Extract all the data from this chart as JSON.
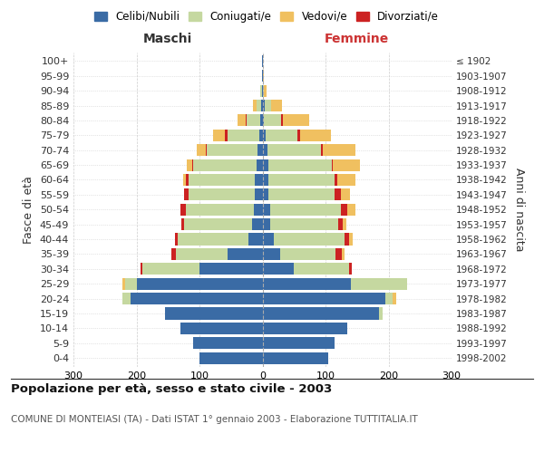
{
  "age_groups": [
    "0-4",
    "5-9",
    "10-14",
    "15-19",
    "20-24",
    "25-29",
    "30-34",
    "35-39",
    "40-44",
    "45-49",
    "50-54",
    "55-59",
    "60-64",
    "65-69",
    "70-74",
    "75-79",
    "80-84",
    "85-89",
    "90-94",
    "95-99",
    "100+"
  ],
  "birth_years": [
    "1998-2002",
    "1993-1997",
    "1988-1992",
    "1983-1987",
    "1978-1982",
    "1973-1977",
    "1968-1972",
    "1963-1967",
    "1958-1962",
    "1953-1957",
    "1948-1952",
    "1943-1947",
    "1938-1942",
    "1933-1937",
    "1928-1932",
    "1923-1927",
    "1918-1922",
    "1913-1917",
    "1908-1912",
    "1903-1907",
    "≤ 1902"
  ],
  "maschi_celibi": [
    100,
    110,
    130,
    155,
    210,
    200,
    100,
    55,
    22,
    16,
    14,
    12,
    12,
    10,
    8,
    5,
    3,
    2,
    1,
    1,
    1
  ],
  "maschi_coniugati": [
    0,
    0,
    0,
    0,
    12,
    18,
    90,
    82,
    112,
    108,
    108,
    105,
    105,
    100,
    80,
    50,
    22,
    8,
    2,
    0,
    0
  ],
  "maschi_vedovi": [
    0,
    0,
    0,
    0,
    0,
    4,
    0,
    0,
    0,
    0,
    0,
    0,
    4,
    8,
    14,
    18,
    12,
    5,
    0,
    0,
    0
  ],
  "maschi_divorziati": [
    0,
    0,
    0,
    0,
    0,
    0,
    4,
    8,
    5,
    5,
    8,
    8,
    5,
    2,
    2,
    5,
    2,
    0,
    0,
    0,
    0
  ],
  "femmine_nubili": [
    105,
    115,
    135,
    185,
    195,
    140,
    50,
    28,
    18,
    12,
    12,
    10,
    10,
    10,
    8,
    5,
    2,
    3,
    0,
    0,
    0
  ],
  "femmine_coniugate": [
    0,
    0,
    0,
    5,
    12,
    90,
    88,
    88,
    112,
    108,
    112,
    105,
    105,
    100,
    85,
    50,
    28,
    10,
    2,
    0,
    0
  ],
  "femmine_vedove": [
    0,
    0,
    0,
    0,
    5,
    0,
    0,
    4,
    5,
    5,
    14,
    14,
    28,
    42,
    52,
    48,
    42,
    18,
    5,
    2,
    0
  ],
  "femmine_divorziate": [
    0,
    0,
    0,
    0,
    0,
    0,
    4,
    10,
    8,
    8,
    10,
    10,
    4,
    2,
    2,
    5,
    2,
    0,
    0,
    0,
    0
  ],
  "color_celibi": "#3a6ba5",
  "color_coniugati": "#c5d8a0",
  "color_vedovi": "#f0c060",
  "color_divorziati": "#cc2222",
  "xlim": 300,
  "title": "Popolazione per età, sesso e stato civile - 2003",
  "subtitle": "COMUNE DI MONTEIASI (TA) - Dati ISTAT 1° gennaio 2003 - Elaborazione TUTTITALIA.IT",
  "ylabel_left": "Fasce di età",
  "ylabel_right": "Anni di nascita",
  "label_maschi": "Maschi",
  "label_femmine": "Femmine",
  "legend_labels": [
    "Celibi/Nubili",
    "Coniugati/e",
    "Vedovi/e",
    "Divorziati/e"
  ],
  "bg_color": "#ffffff",
  "grid_color": "#cccccc"
}
